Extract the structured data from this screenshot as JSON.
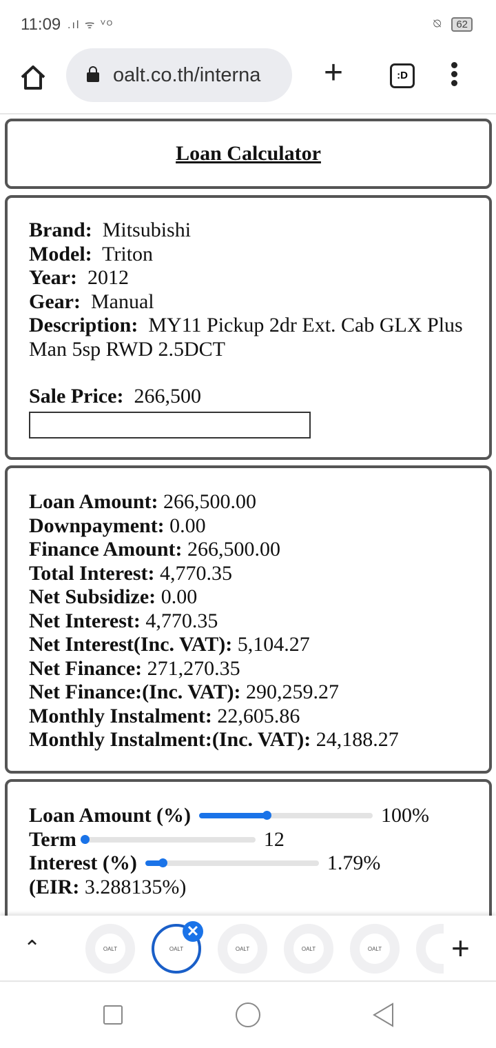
{
  "status": {
    "time": "11:09",
    "battery": "62"
  },
  "browser": {
    "url": "oalt.co.th/interna",
    "tab_switcher": ":D"
  },
  "title": "Loan Calculator",
  "vehicle": [
    {
      "label": "Brand:",
      "value": "Mitsubishi"
    },
    {
      "label": "Model:",
      "value": "Triton"
    },
    {
      "label": "Year:",
      "value": "2012"
    },
    {
      "label": "Gear:",
      "value": "Manual"
    },
    {
      "label": "Description:",
      "value": "MY11 Pickup 2dr Ext. Cab GLX Plus Man 5sp RWD 2.5DCT"
    }
  ],
  "sale_price": {
    "label": "Sale Price:",
    "value": "266,500",
    "input_value": ""
  },
  "results": [
    {
      "label": "Loan Amount:",
      "value": "266,500.00"
    },
    {
      "label": "Downpayment:",
      "value": "0.00"
    },
    {
      "label": "Finance Amount:",
      "value": "266,500.00"
    },
    {
      "label": "Total Interest:",
      "value": "4,770.35"
    },
    {
      "label": "Net Subsidize:",
      "value": "0.00"
    },
    {
      "label": "Net Interest:",
      "value": "4,770.35"
    },
    {
      "label": "Net Interest(Inc. VAT):",
      "value": "5,104.27"
    },
    {
      "label": "Net Finance:",
      "value": "271,270.35"
    },
    {
      "label": "Net Finance:(Inc. VAT):",
      "value": "290,259.27"
    },
    {
      "label": "Monthly Instalment:",
      "value": "22,605.86"
    },
    {
      "label": "Monthly Instalment:(Inc. VAT):",
      "value": "24,188.27"
    }
  ],
  "sliders": [
    {
      "label": "Loan Amount (%)",
      "value": "100%",
      "position_fraction": 0.39
    },
    {
      "label": "Term",
      "value": "12",
      "position_fraction": 0.0
    },
    {
      "label": "Interest (%)",
      "value": "1.79%",
      "position_fraction": 0.1
    }
  ],
  "eir": {
    "label": "(EIR:",
    "value": "3.288135%)"
  },
  "tab_strip": {
    "favicon_text": "OALT",
    "tab_count_visible": 5,
    "active_index": 1
  },
  "colors": {
    "accent": "#1a73e8",
    "card_border": "#555555"
  }
}
